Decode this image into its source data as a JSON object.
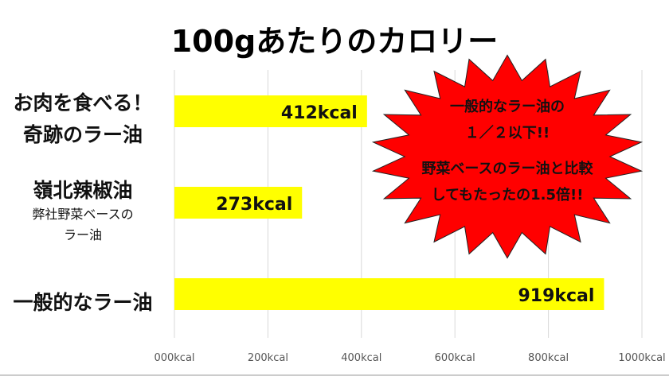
{
  "chart_data": {
    "type": "bar",
    "orientation": "horizontal",
    "title": "100gあたりのカロリー",
    "categories": [
      {
        "lines": [
          "お肉を食べる！",
          "奇跡のラー油"
        ],
        "sub": []
      },
      {
        "lines": [
          "嶺北辣椒油"
        ],
        "sub": [
          "弊社野菜ベースの",
          "ラー油"
        ]
      },
      {
        "lines": [
          "一般的なラー油"
        ],
        "sub": []
      }
    ],
    "values": [
      412,
      273,
      919
    ],
    "data_labels": [
      "412kcal",
      "273kcal",
      "919kcal"
    ],
    "xlim": [
      0,
      1000
    ],
    "ticks": [
      0,
      200,
      400,
      600,
      800,
      1000
    ],
    "tick_labels": [
      "000kcal",
      "200kcal",
      "400kcal",
      "600kcal",
      "800kcal",
      "1000kcal"
    ],
    "grid": true,
    "bar_color": "#ffff00",
    "annotation": {
      "color": "#ff0000",
      "lines": [
        "一般的なラー油の",
        "１／２以下!!",
        "野菜ベースのラー油と比較",
        "してもたったの1.5倍!!"
      ]
    }
  }
}
